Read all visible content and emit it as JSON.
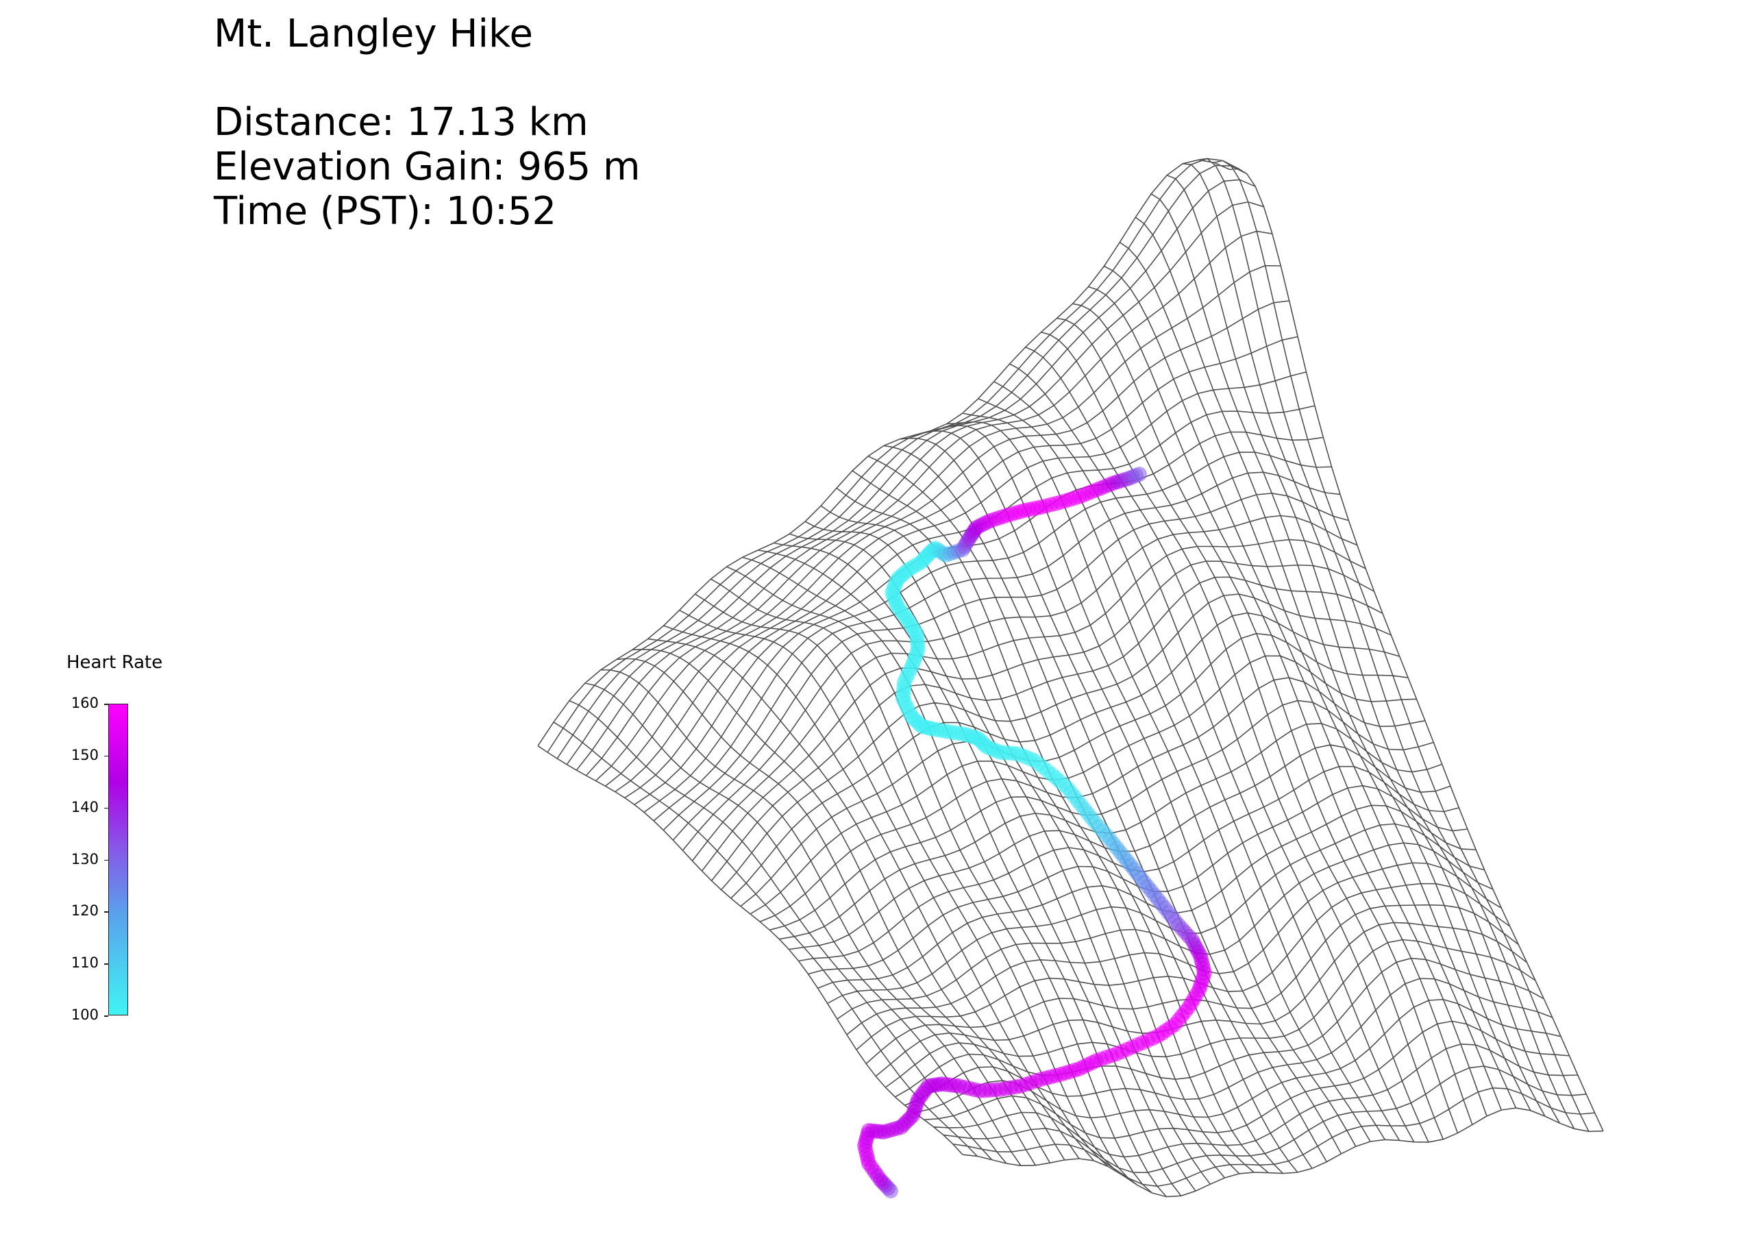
{
  "header": {
    "title": "Mt. Langley Hike",
    "distance": "Distance: 17.13 km",
    "elevation_gain": "Elevation Gain: 965 m",
    "time": "Time (PST): 10:52"
  },
  "colorbar": {
    "label": "Heart Rate",
    "ticks": [
      "160",
      "150",
      "140",
      "130",
      "120",
      "110",
      "100"
    ],
    "min": 100,
    "max": 160,
    "colors": [
      "#40f4f4",
      "#5aa0ec",
      "#8a52e8",
      "#b000e6",
      "#ff00ff"
    ]
  },
  "chart_data": {
    "type": "3d-wireframe-surface",
    "surface": "terrain wireframe mesh",
    "mesh_color": "#333333",
    "trail": {
      "colormap": "heart rate (cyan to magenta)",
      "heart_rate_range": [
        100,
        160
      ]
    },
    "grid": false
  }
}
